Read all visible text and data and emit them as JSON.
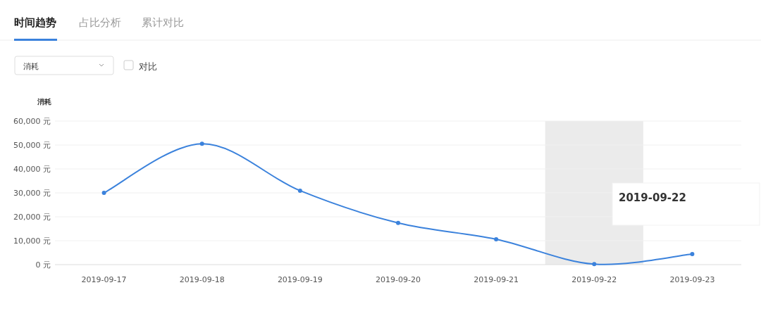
{
  "chart_data": {
    "type": "line",
    "ylabel": "消耗",
    "categories": [
      "2019-09-17",
      "2019-09-18",
      "2019-09-19",
      "2019-09-20",
      "2019-09-21",
      "2019-09-22",
      "2019-09-23"
    ],
    "series": [
      {
        "color": "#3b82dc",
        "values": [
          30000,
          50500,
          30900,
          17400,
          10600,
          200,
          4400
        ]
      }
    ],
    "ylim": [
      0,
      60000
    ],
    "yticks": [
      {
        "value": 0,
        "label": "0 元"
      },
      {
        "value": 10000,
        "label": "10,000 元"
      },
      {
        "value": 20000,
        "label": "20,000 元"
      },
      {
        "value": 30000,
        "label": "30,000 元"
      },
      {
        "value": 40000,
        "label": "40,000 元"
      },
      {
        "value": 50000,
        "label": "50,000 元"
      },
      {
        "value": 60000,
        "label": "60,000 元"
      }
    ],
    "grid": "y",
    "marker": "circle",
    "line_style": "solid",
    "bands": [
      {
        "axis": "x",
        "from": "2019-09-22",
        "to": "2019-09-22",
        "color": "#ebebeb"
      }
    ],
    "annotations": [
      "时间趋势",
      "占比分析",
      "累计对比",
      "消耗",
      "对比",
      "2019-09-22"
    ]
  }
}
